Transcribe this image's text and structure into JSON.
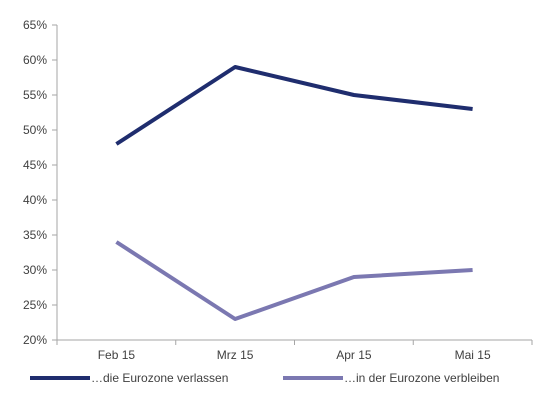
{
  "chart_data": {
    "type": "line",
    "categories": [
      "Feb 15",
      "Mrz 15",
      "Apr 15",
      "Mai 15"
    ],
    "ylim": [
      20,
      65
    ],
    "y_ticks": [
      {
        "value": 20,
        "label": "20%"
      },
      {
        "value": 25,
        "label": "25%"
      },
      {
        "value": 30,
        "label": "30%"
      },
      {
        "value": 35,
        "label": "35%"
      },
      {
        "value": 40,
        "label": "40%"
      },
      {
        "value": 45,
        "label": "45%"
      },
      {
        "value": 50,
        "label": "50%"
      },
      {
        "value": 55,
        "label": "55%"
      },
      {
        "value": 60,
        "label": "60%"
      },
      {
        "value": 65,
        "label": "65%"
      }
    ],
    "grid": false,
    "legend_position": "bottom",
    "series": [
      {
        "name": "…die Eurozone verlassen",
        "values": [
          48,
          59,
          55,
          53
        ],
        "color": "#1f2d6e"
      },
      {
        "name": "…in der Eurozone verbleiben",
        "values": [
          34,
          23,
          29,
          30
        ],
        "color": "#7b78b1"
      }
    ]
  }
}
